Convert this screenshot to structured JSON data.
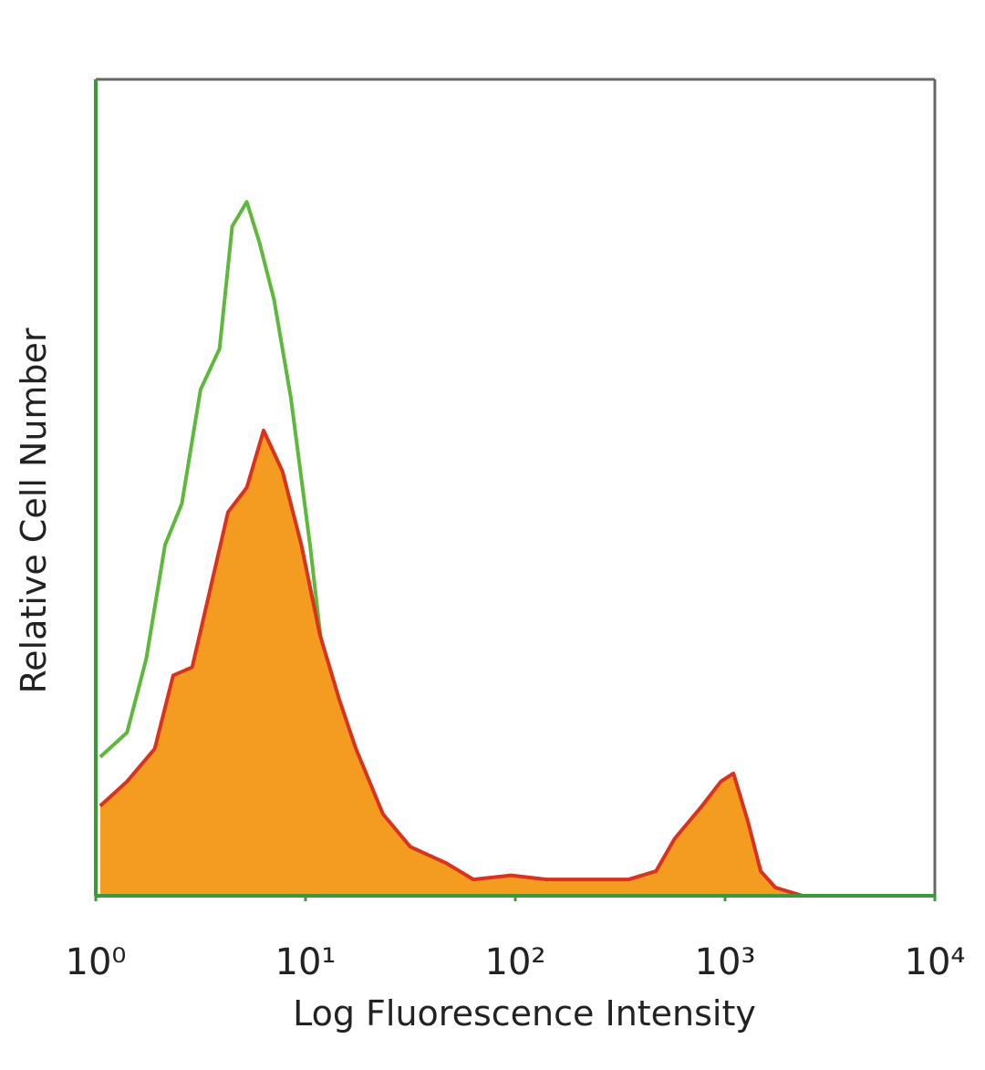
{
  "chart_data": {
    "type": "histogram-overlay",
    "xlabel": "Log Fluorescence Intensity",
    "ylabel": "Relative Cell Number",
    "xscale": "log",
    "xlim": [
      1,
      10000
    ],
    "xticks": [
      {
        "value": 1,
        "label": "10⁰"
      },
      {
        "value": 10,
        "label": "10¹"
      },
      {
        "value": 100,
        "label": "10²"
      },
      {
        "value": 1000,
        "label": "10³"
      },
      {
        "value": 10000,
        "label": "10⁴"
      }
    ],
    "ylim": [
      0,
      100
    ],
    "series": [
      {
        "color": "#5db83c",
        "filled": false,
        "x": [
          1.05,
          1.41,
          1.74,
          2.14,
          2.57,
          3.16,
          3.89,
          4.47,
          5.25,
          6.03,
          7.08,
          8.51,
          10.5,
          12.9,
          15.8,
          19.1,
          28.8,
          38.9
        ],
        "values": [
          17,
          20,
          29,
          43,
          48,
          62,
          67,
          82,
          85,
          80,
          73,
          61,
          43,
          23,
          9,
          2.5,
          1,
          0
        ]
      },
      {
        "color": "#d9321f",
        "fill_color": "#f39c1f",
        "filled": true,
        "x": [
          1.05,
          1.41,
          1.91,
          2.34,
          2.88,
          3.47,
          4.27,
          5.25,
          6.31,
          7.76,
          9.55,
          11.7,
          14.5,
          17.4,
          23.4,
          31.6,
          46.8,
          63.1,
          95.5,
          141,
          234,
          347,
          468,
          575,
          776,
          955,
          1096,
          1288,
          1479,
          1738,
          2344,
          3890
        ],
        "values": [
          11,
          14,
          18,
          27,
          28,
          37,
          47,
          50,
          57,
          52,
          43,
          32,
          24,
          18,
          10,
          6,
          4,
          2,
          2.5,
          2,
          2,
          2,
          3,
          7,
          11,
          14,
          15,
          9,
          3,
          1,
          0,
          0
        ]
      }
    ]
  }
}
